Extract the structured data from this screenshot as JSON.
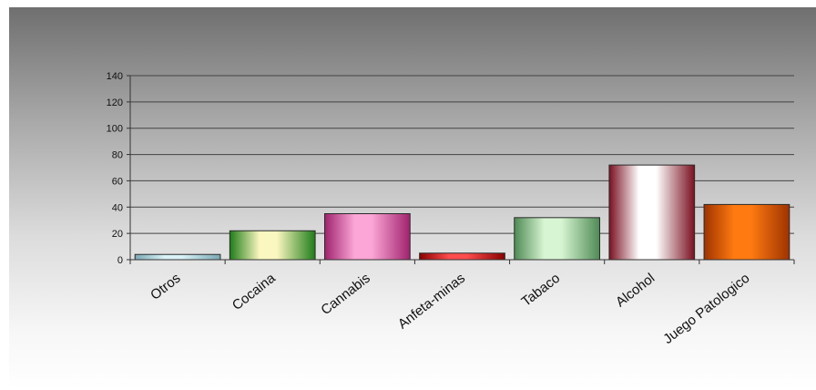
{
  "chart_data": {
    "type": "bar",
    "categories": [
      "Otros",
      "Cocaina",
      "Cannabis",
      "Anfeta-minas",
      "Tabaco",
      "Alcohol",
      "Juego Patologico"
    ],
    "values": [
      4,
      22,
      35,
      5,
      32,
      72,
      42
    ],
    "ylim": [
      0,
      140
    ],
    "yticks": [
      0,
      20,
      40,
      60,
      80,
      100,
      120,
      140
    ],
    "grid": true,
    "title": "",
    "xlabel": "",
    "ylabel": "",
    "bar_colors": [
      [
        "#d9f3f8",
        "#7aa7b3"
      ],
      [
        "#fbf7c0",
        "#1f7d1a"
      ],
      [
        "#fba6d6",
        "#a0226e"
      ],
      [
        "#ff4d4d",
        "#8a0000"
      ],
      [
        "#d7f5d2",
        "#4f8a55"
      ],
      [
        "#ffffff",
        "#7a1020"
      ],
      [
        "#ff7a10",
        "#9e3300"
      ]
    ]
  }
}
